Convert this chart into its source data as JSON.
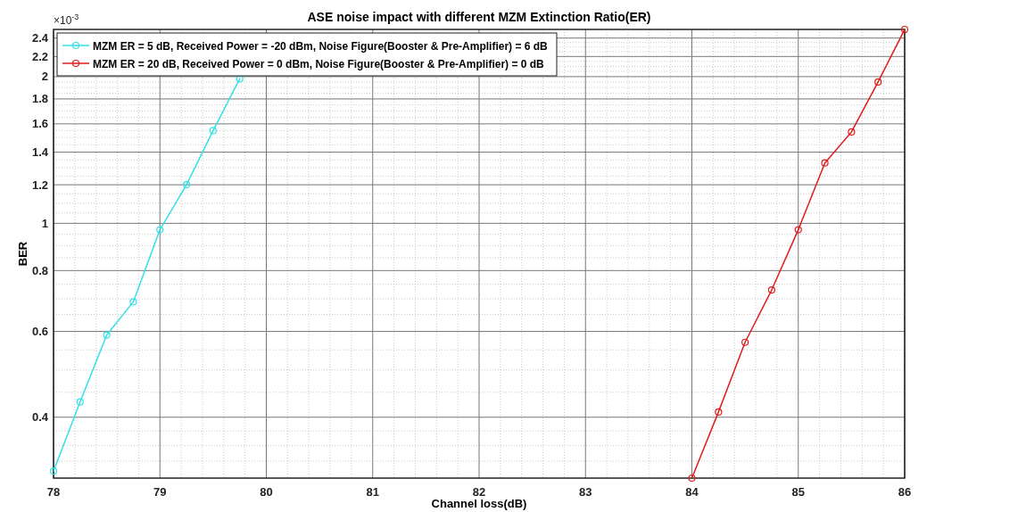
{
  "chart_data": {
    "type": "line",
    "title": "ASE noise impact with different MZM Extinction Ratio(ER)",
    "xlabel": "Channel loss(dB)",
    "ylabel": "BER",
    "annotations": [
      "×10$^{-3}$"
    ],
    "series": [
      {
        "name": "MZM ER = 5 dB, Received Power = -20 dBm, Noise Figure(Booster & Pre-Amplifier) = 6 dB",
        "color": "#33e0e6",
        "x": [
          78,
          78.25,
          78.5,
          78.75,
          79,
          79.25,
          79.5,
          79.75
        ],
        "values": [
          0.31,
          0.43,
          0.59,
          0.69,
          0.97,
          1.2,
          1.55,
          1.98
        ]
      },
      {
        "name": "MZM ER = 20 dB, Received Power = 0 dBm, Noise Figure(Booster & Pre-Amplifier) = 0 dB",
        "color": "#e01c1c",
        "x": [
          84,
          84.25,
          84.5,
          84.75,
          85,
          85.25,
          85.5,
          85.75,
          86
        ],
        "values": [
          0.3,
          0.41,
          0.57,
          0.73,
          0.97,
          1.33,
          1.54,
          1.95,
          2.5
        ]
      }
    ],
    "xlim": [
      78,
      86
    ],
    "xticks": [
      78,
      79,
      80,
      81,
      82,
      83,
      84,
      85,
      86
    ],
    "ylim": [
      0.3,
      2.5
    ],
    "yticks": [
      0.4,
      0.6,
      0.8,
      1,
      1.2,
      1.4,
      1.6,
      1.8,
      2,
      2.2,
      2.4
    ],
    "log": "y",
    "grid": true,
    "legend": "top left",
    "marker": "circle",
    "line_style": "solid"
  }
}
